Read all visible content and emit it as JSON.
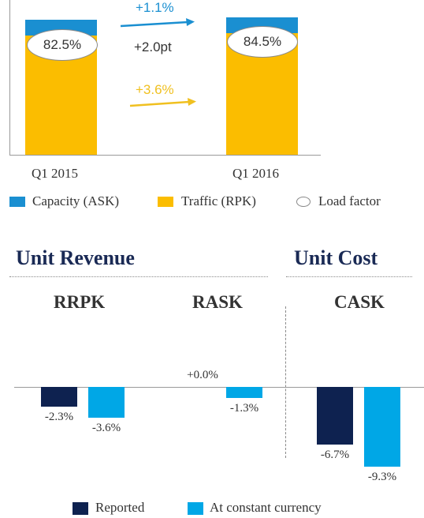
{
  "chart_data": [
    {
      "type": "bar",
      "categories": [
        "Q1 2015",
        "Q1 2016"
      ],
      "series": [
        {
          "name": "Capacity (ASK)",
          "color": "#1a8fd1"
        },
        {
          "name": "Traffic (RPK)",
          "color": "#fbbd00"
        }
      ],
      "load_factor": {
        "name": "Load factor",
        "labels": [
          "82.5%",
          "84.5%"
        ],
        "values": [
          82.5,
          84.5
        ]
      },
      "changes": {
        "capacity": {
          "label": "+1.1%",
          "color": "#1a8fd1"
        },
        "load_factor": {
          "label": "+2.0pt",
          "color": "#333333"
        },
        "traffic": {
          "label": "+3.6%",
          "color": "#f0c020"
        }
      }
    },
    {
      "type": "bar",
      "groups": [
        {
          "section": "Unit Revenue",
          "metrics": [
            "RRPK",
            "RASK"
          ]
        },
        {
          "section": "Unit Cost",
          "metrics": [
            "CASK"
          ]
        }
      ],
      "categories": [
        "RRPK",
        "RASK",
        "CASK"
      ],
      "series": [
        {
          "name": "Reported",
          "color": "#0e2250",
          "values": [
            -2.3,
            0.0,
            -6.7
          ],
          "labels": [
            "-2.3%",
            "+0.0%",
            "-6.7%"
          ]
        },
        {
          "name": "At constant currency",
          "color": "#00a7e6",
          "values": [
            -3.6,
            -1.3,
            -9.3
          ],
          "labels": [
            "-3.6%",
            "-1.3%",
            "-9.3%"
          ]
        }
      ],
      "ylim": [
        -10,
        4
      ]
    }
  ]
}
